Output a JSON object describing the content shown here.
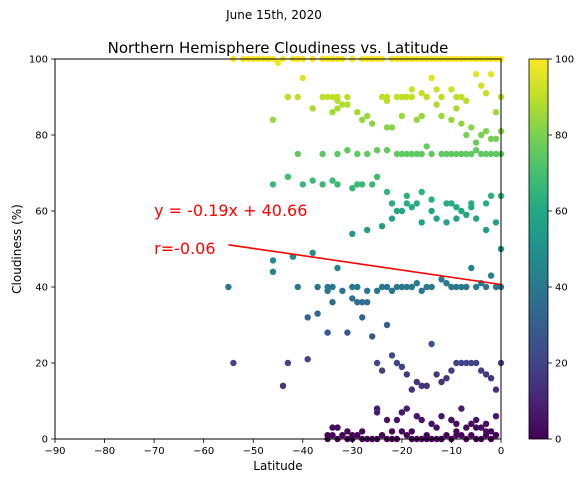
{
  "suptitle": "June 15th, 2020",
  "chart_data": {
    "type": "scatter",
    "title": "Northern Hemisphere Cloudiness vs. Latitude",
    "xlabel": "Latitude",
    "ylabel": "Cloudiness (%)",
    "xlim": [
      -90,
      0
    ],
    "ylim": [
      0,
      100
    ],
    "xticks": [
      -90,
      -80,
      -70,
      -60,
      -50,
      -40,
      -30,
      -20,
      -10,
      0
    ],
    "yticks": [
      0,
      20,
      40,
      60,
      80,
      100
    ],
    "grid": false,
    "colormap": "viridis",
    "colorbar": {
      "min": 0,
      "max": 100,
      "ticks": [
        0,
        20,
        40,
        60,
        80,
        100
      ]
    },
    "regression": {
      "slope": -0.19,
      "intercept": 40.66,
      "x_range": [
        -55,
        0
      ],
      "color": "#ff0000",
      "equation_label": "y = -0.19x + 40.66",
      "r_label": "r=-0.06",
      "equation_pos": [
        -70,
        60
      ],
      "r_pos": [
        -70,
        50
      ]
    },
    "x": [
      -54,
      -52,
      -51,
      -50,
      -49,
      -48,
      -47,
      -46,
      -45,
      -44,
      -42,
      -41,
      -40,
      -38,
      -36,
      -35,
      -34,
      -33,
      -32,
      -30,
      -28,
      -27,
      -26,
      -25,
      -24,
      -22,
      -21,
      -20,
      -19,
      -18,
      -17,
      -16,
      -15,
      -14,
      -13,
      -12,
      -11,
      -10,
      -9,
      -8,
      -7,
      -6,
      -5,
      -4,
      -3,
      -2,
      -1,
      0,
      -43,
      -43,
      -41,
      -36,
      -35,
      -34,
      -33,
      -33,
      -32,
      -31,
      -24,
      -23,
      -23,
      -21,
      -20,
      -19,
      -18,
      -18,
      -18,
      -16,
      -15,
      -14,
      -13,
      -12,
      -10,
      -9,
      -8,
      -7,
      -5,
      -4,
      -3,
      -2,
      -1,
      0,
      -46,
      -40,
      -38,
      -34,
      -33,
      -31,
      -29,
      -28,
      -27,
      -26,
      -23,
      -22,
      -20,
      -17,
      -16,
      -13,
      -12,
      -10,
      -9,
      -8,
      -7,
      -6,
      -5,
      -4,
      -3,
      -2,
      -1,
      0,
      -41,
      -36,
      -33,
      -31,
      -29,
      -27,
      -25,
      -23,
      -21,
      -20,
      -19,
      -18,
      -17,
      -16,
      -15,
      -14,
      -12,
      -11,
      -10,
      -9,
      -8,
      -7,
      -6,
      -5,
      -4,
      -3,
      -2,
      -1,
      0,
      -46,
      -43,
      -40,
      -38,
      -36,
      -34,
      -33,
      -30,
      -29,
      -28,
      -26,
      -25,
      -23,
      -22,
      -21,
      -20,
      -19,
      -18,
      -17,
      -16,
      -14,
      -13,
      -11,
      -10,
      -9,
      -8,
      -7,
      -6,
      -5,
      -3,
      -2,
      -1,
      0,
      -55,
      -46,
      -42,
      -41,
      -39,
      -37,
      -35,
      -34,
      -32,
      -30,
      -29,
      -28,
      -27,
      -25,
      -24,
      -23,
      -22,
      -21,
      -20,
      -19,
      -18,
      -17,
      -16,
      -15,
      -14,
      -12,
      -11,
      -10,
      -9,
      -8,
      -7,
      -6,
      -5,
      -4,
      -3,
      -2,
      -1,
      0,
      -54,
      -44,
      -43,
      -39,
      -37,
      -35,
      -34,
      -33,
      -31,
      -30,
      -29,
      -28,
      -27,
      -26,
      -25,
      -24,
      -23,
      -22,
      -21,
      -20,
      -19,
      -18,
      -17,
      -16,
      -15,
      -14,
      -13,
      -12,
      -11,
      -10,
      -9,
      -8,
      -7,
      -6,
      -5,
      -4,
      -3,
      -2,
      -1,
      0,
      -35,
      -34,
      -33,
      -32,
      -31,
      -30,
      -29,
      -28,
      -27,
      -26,
      -25,
      -24,
      -23,
      -22,
      -21,
      -20,
      -19,
      -18,
      -17,
      -16,
      -15,
      -14,
      -13,
      -12,
      -11,
      -10,
      -9,
      -8,
      -7,
      -6,
      -5,
      -4,
      -3,
      -2,
      -1,
      -34,
      -31,
      -25,
      -23,
      -21,
      -20,
      -19,
      -17,
      -16,
      -14,
      -13,
      -12,
      -10,
      -9,
      -8,
      -6,
      -5,
      -4,
      -3,
      -2,
      -1,
      -35,
      -33,
      -30,
      -28,
      -25,
      -22,
      -20,
      -18,
      -15,
      -12,
      -10,
      -9,
      -7,
      -5,
      -3,
      -1,
      -46,
      -42,
      -38,
      -35,
      -30,
      -27,
      -24,
      -22,
      -19,
      -16,
      -14,
      -11,
      -9,
      -6,
      -3,
      0
    ],
    "y": [
      100,
      100,
      100,
      100,
      100,
      100,
      100,
      100,
      99,
      100,
      100,
      100,
      100,
      100,
      100,
      100,
      100,
      100,
      100,
      100,
      100,
      100,
      100,
      100,
      100,
      100,
      100,
      100,
      100,
      100,
      100,
      100,
      100,
      100,
      100,
      100,
      100,
      100,
      100,
      100,
      100,
      100,
      100,
      100,
      100,
      100,
      100,
      100,
      90,
      90,
      90,
      90,
      90,
      90,
      90,
      89,
      88,
      90,
      90,
      90,
      89,
      90,
      90,
      90,
      90,
      90,
      92,
      91,
      90,
      95,
      92,
      90,
      92,
      90,
      90,
      89,
      96,
      93,
      91,
      96,
      86,
      90,
      84,
      95,
      87,
      86,
      87,
      88,
      86,
      84,
      85,
      83,
      82,
      82,
      85,
      84,
      85,
      88,
      85,
      84,
      87,
      83,
      80,
      82,
      78,
      80,
      81,
      79,
      79,
      81,
      75,
      75,
      75,
      76,
      75,
      75,
      76,
      76,
      75,
      75,
      75,
      75,
      75,
      75,
      77,
      75,
      75,
      75,
      75,
      75,
      75,
      75,
      75,
      76,
      75,
      75,
      75,
      75,
      75,
      67,
      69,
      67,
      68,
      67,
      68,
      67,
      66,
      67,
      67,
      67,
      69,
      65,
      62,
      60,
      60,
      62,
      61,
      62,
      65,
      60,
      58,
      62,
      62,
      61,
      60,
      59,
      62,
      58,
      62,
      64,
      57,
      64,
      40,
      47,
      48,
      40,
      32,
      40,
      39,
      40,
      39,
      40,
      40,
      36,
      39,
      39,
      40,
      40,
      39,
      40,
      40,
      40,
      40,
      41,
      39,
      40,
      40,
      42,
      41,
      40,
      40,
      40,
      40,
      45,
      40,
      41,
      40,
      43,
      40,
      40,
      20,
      14,
      20,
      21,
      33,
      28,
      36,
      45,
      28,
      37,
      36,
      32,
      36,
      27,
      20,
      18,
      30,
      22,
      20,
      19,
      17,
      13,
      15,
      14,
      14,
      25,
      17,
      15,
      16,
      18,
      20,
      20,
      20,
      20,
      20,
      18,
      17,
      16,
      13,
      20,
      0,
      1,
      0,
      1,
      0,
      0,
      1,
      0,
      0,
      0,
      0,
      1,
      0,
      0,
      0,
      2,
      1,
      0,
      0,
      0,
      0,
      0,
      0,
      0,
      1,
      0,
      1,
      1,
      0,
      1,
      0,
      0,
      1,
      0,
      1,
      3,
      2,
      7,
      5,
      5,
      7,
      8,
      6,
      5,
      4,
      3,
      6,
      5,
      2,
      8,
      4,
      3,
      3,
      4,
      2,
      6,
      1,
      3,
      1,
      2,
      8,
      2,
      7,
      2,
      1,
      0,
      5,
      4,
      3,
      5,
      2,
      1,
      44,
      48,
      49,
      40,
      54,
      55,
      56,
      58,
      64,
      57,
      63,
      57,
      58,
      61,
      55,
      50
    ]
  }
}
